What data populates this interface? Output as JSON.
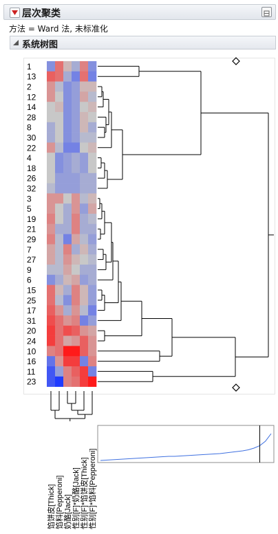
{
  "panel": {
    "title": "层次聚类",
    "method_label": "方法 = Ward 法, 未标准化",
    "section_title": "系统树图"
  },
  "row_labels": [
    "1",
    "13",
    "2",
    "12",
    "14",
    "28",
    "8",
    "30",
    "22",
    "4",
    "18",
    "26",
    "32",
    "3",
    "5",
    "19",
    "21",
    "29",
    "7",
    "27",
    "9",
    "6",
    "15",
    "25",
    "17",
    "31",
    "20",
    "24",
    "10",
    "16",
    "11",
    "23"
  ],
  "column_labels": [
    "馅饼皮[Thick]",
    "馅料[Pepperoni]",
    "奶酪[Jack]",
    "性别[F]*奶酪[Jack]",
    "性别[F]*馅饼皮[Thick]",
    "性别[F]*馅料[Pepperoni]"
  ],
  "heatmap": [
    [
      -0.4,
      0.5,
      0.1,
      -0.2,
      0.4,
      -0.4
    ],
    [
      0.6,
      0.5,
      -0.2,
      -0.5,
      0.5,
      -0.5
    ],
    [
      0.3,
      -0.1,
      -0.4,
      -0.3,
      0.1,
      0.1
    ],
    [
      0.3,
      0.0,
      -0.4,
      -0.3,
      0.2,
      -0.1
    ],
    [
      0.0,
      0.1,
      -0.4,
      -0.3,
      0.0,
      0.1
    ],
    [
      0.0,
      0.0,
      -0.4,
      -0.3,
      0.1,
      0.0
    ],
    [
      -0.2,
      0.0,
      -0.4,
      -0.3,
      0.1,
      -0.2
    ],
    [
      -0.2,
      0.0,
      -0.4,
      -0.3,
      -0.1,
      -0.1
    ],
    [
      0.3,
      -0.1,
      -0.5,
      -0.5,
      0.0,
      0.1
    ],
    [
      0.0,
      -0.4,
      -0.3,
      -0.2,
      -0.3,
      0.0
    ],
    [
      0.0,
      -0.4,
      -0.3,
      -0.2,
      -0.3,
      0.0
    ],
    [
      0.0,
      -0.3,
      -0.3,
      -0.3,
      -0.2,
      -0.2
    ],
    [
      -0.1,
      -0.3,
      -0.3,
      -0.3,
      -0.2,
      -0.2
    ],
    [
      0.3,
      0.3,
      0.0,
      0.3,
      -0.1,
      0.1
    ],
    [
      0.3,
      0.0,
      -0.2,
      0.3,
      -0.3,
      0.2
    ],
    [
      0.4,
      0.0,
      -0.2,
      0.4,
      -0.2,
      -0.1
    ],
    [
      0.3,
      -0.2,
      -0.2,
      0.4,
      -0.2,
      -0.2
    ],
    [
      0.4,
      -0.1,
      -0.5,
      0.2,
      -0.1,
      -0.3
    ],
    [
      0.2,
      -0.1,
      0.4,
      -0.2,
      0.1,
      -0.2
    ],
    [
      0.2,
      -0.1,
      0.3,
      0.1,
      0.0,
      -0.1
    ],
    [
      -0.1,
      -0.1,
      0.2,
      0.0,
      -0.2,
      -0.2
    ],
    [
      -0.4,
      -0.2,
      0.1,
      0.2,
      -0.3,
      -0.2
    ],
    [
      0.5,
      0.1,
      -0.2,
      0.4,
      0.1,
      -0.3
    ],
    [
      0.5,
      -0.1,
      -0.4,
      0.4,
      0.1,
      -0.3
    ],
    [
      0.6,
      0.3,
      -0.2,
      0.3,
      -0.1,
      -0.5
    ],
    [
      0.7,
      0.5,
      0.3,
      0.4,
      -0.5,
      -0.3
    ],
    [
      0.8,
      0.5,
      0.7,
      0.6,
      0.3,
      0.2
    ],
    [
      0.8,
      0.5,
      0.2,
      0.3,
      0.6,
      0.3
    ],
    [
      0.4,
      0.5,
      1.0,
      1.0,
      0.6,
      0.3
    ],
    [
      -0.6,
      0.3,
      0.8,
      0.8,
      -0.5,
      0.4
    ],
    [
      -0.8,
      -0.3,
      0.4,
      0.6,
      0.8,
      -0.5
    ],
    [
      -0.8,
      -1.0,
      0.4,
      0.5,
      0.8,
      1.0
    ]
  ],
  "colors": {
    "heat_low": "#1f3bff",
    "heat_mid": "#c8c8c8",
    "heat_high": "#ff1a1a",
    "dendro_line": "#000000",
    "distance_line": "#3d6fe0",
    "panel_accent": "#cc2222"
  },
  "chart_data": {
    "type": "heatmap",
    "distance_plot": {
      "type": "line",
      "series": [
        {
          "values": [
            0.02,
            0.03,
            0.04,
            0.05,
            0.06,
            0.07,
            0.08,
            0.09,
            0.1,
            0.11,
            0.12,
            0.13,
            0.14,
            0.14,
            0.15,
            0.16,
            0.17,
            0.18,
            0.19,
            0.2,
            0.21,
            0.22,
            0.24,
            0.26,
            0.28,
            0.3,
            0.33,
            0.38,
            0.45,
            0.58,
            0.8
          ]
        }
      ],
      "cut_step": 28
    }
  }
}
